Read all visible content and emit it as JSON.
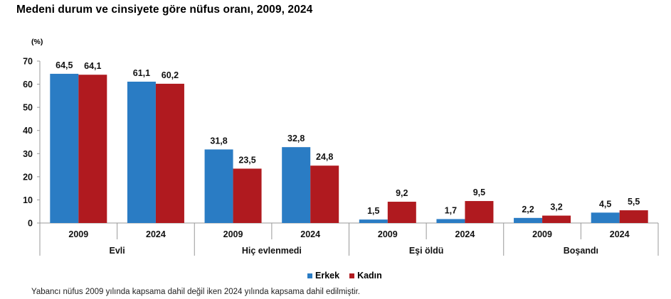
{
  "title": "Medeni durum ve cinsiyete göre nüfus oranı, 2009, 2024",
  "unit_label": "(%)",
  "note": "Yabancı nüfus 2009 yılında kapsama dahil değil iken 2024 yılında kapsama dahil edilmiştir.",
  "colors": {
    "erkek": "#2a7cc4",
    "kadin": "#b01a1f",
    "axis": "#999999"
  },
  "legend": [
    {
      "label": "Erkek",
      "color": "#2a7cc4"
    },
    {
      "label": "Kadın",
      "color": "#b01a1f"
    }
  ],
  "chart_data": {
    "type": "bar",
    "title": "Medeni durum ve cinsiyete göre nüfus oranı, 2009, 2024",
    "ylabel": "(%)",
    "xlabel": "",
    "ylim": [
      0,
      70
    ],
    "yticks": [
      0,
      10,
      20,
      30,
      40,
      50,
      60,
      70
    ],
    "grid": false,
    "legend_position": "bottom",
    "groups": [
      "Evli",
      "Hiç evlenmedi",
      "Eşi öldü",
      "Boşandı"
    ],
    "categories": [
      "Evli 2009",
      "Evli 2024",
      "Hiç evlenmedi 2009",
      "Hiç evlenmedi 2024",
      "Eşi öldü 2009",
      "Eşi öldü 2024",
      "Boşandı 2009",
      "Boşandı 2024"
    ],
    "years": [
      "2009",
      "2024",
      "2009",
      "2024",
      "2009",
      "2024",
      "2009",
      "2024"
    ],
    "series": [
      {
        "name": "Erkek",
        "values": [
          64.5,
          61.1,
          31.8,
          32.8,
          1.5,
          1.7,
          2.2,
          4.5
        ],
        "labels": [
          "64,5",
          "61,1",
          "31,8",
          "32,8",
          "1,5",
          "1,7",
          "2,2",
          "4,5"
        ]
      },
      {
        "name": "Kadın",
        "values": [
          64.1,
          60.2,
          23.5,
          24.8,
          9.2,
          9.5,
          3.2,
          5.5
        ],
        "labels": [
          "64,1",
          "60,2",
          "23,5",
          "24,8",
          "9,2",
          "9,5",
          "3,2",
          "5,5"
        ]
      }
    ]
  }
}
